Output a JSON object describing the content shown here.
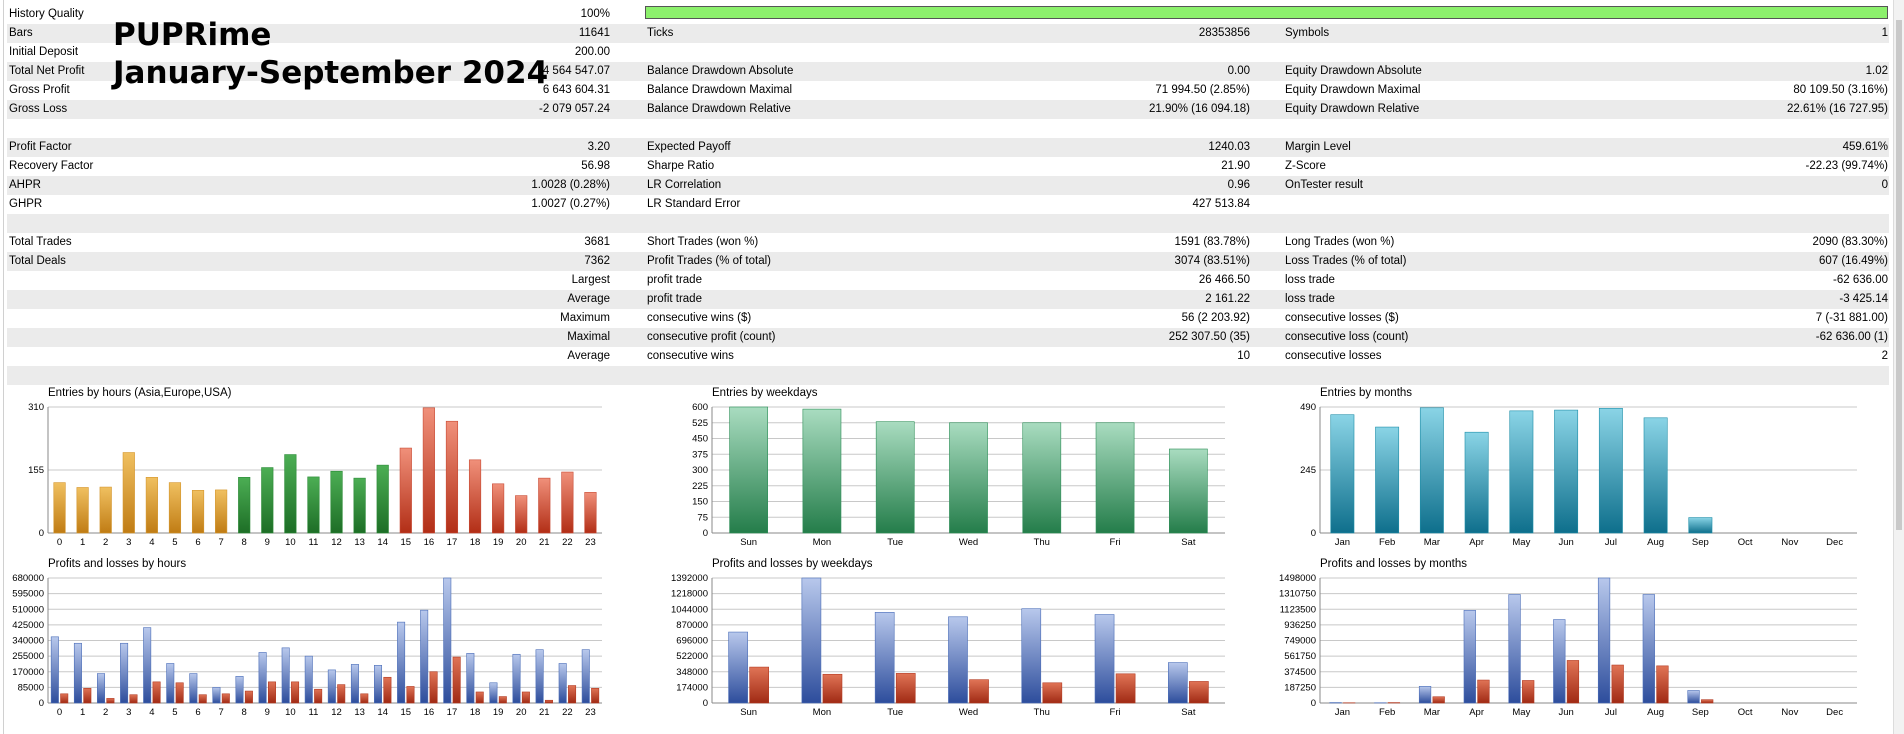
{
  "overlay": {
    "line1": "PUPRime",
    "line2": "January-September 2024"
  },
  "stats": [
    [
      [
        "History Quality",
        "100%"
      ],
      null,
      null
    ],
    [
      [
        "Bars",
        "11641"
      ],
      [
        "Ticks",
        "28353856"
      ],
      [
        "Symbols",
        "1"
      ]
    ],
    [
      [
        "Initial Deposit",
        "200.00"
      ],
      null,
      null
    ],
    [
      [
        "Total Net Profit",
        "4 564 547.07"
      ],
      [
        "Balance Drawdown Absolute",
        "0.00"
      ],
      [
        "Equity Drawdown Absolute",
        "1.02"
      ]
    ],
    [
      [
        "Gross Profit",
        "6 643 604.31"
      ],
      [
        "Balance Drawdown Maximal",
        "71 994.50 (2.85%)"
      ],
      [
        "Equity Drawdown Maximal",
        "80 109.50 (3.16%)"
      ]
    ],
    [
      [
        "Gross Loss",
        "-2 079 057.24"
      ],
      [
        "Balance Drawdown Relative",
        "21.90% (16 094.18)"
      ],
      [
        "Equity Drawdown Relative",
        "22.61% (16 727.95)"
      ]
    ],
    null,
    [
      [
        "Profit Factor",
        "3.20"
      ],
      [
        "Expected Payoff",
        "1240.03"
      ],
      [
        "Margin Level",
        "459.61%"
      ]
    ],
    [
      [
        "Recovery Factor",
        "56.98"
      ],
      [
        "Sharpe Ratio",
        "21.90"
      ],
      [
        "Z-Score",
        "-22.23 (99.74%)"
      ]
    ],
    [
      [
        "AHPR",
        "1.0028 (0.28%)"
      ],
      [
        "LR Correlation",
        "0.96"
      ],
      [
        "OnTester result",
        "0"
      ]
    ],
    [
      [
        "GHPR",
        "1.0027 (0.27%)"
      ],
      [
        "LR Standard Error",
        "427 513.84"
      ],
      null
    ],
    null,
    [
      [
        "Total Trades",
        "3681"
      ],
      [
        "Short Trades (won %)",
        "1591 (83.78%)"
      ],
      [
        "Long Trades (won %)",
        "2090 (83.30%)"
      ]
    ],
    [
      [
        "Total Deals",
        "7362"
      ],
      [
        "Profit Trades (% of total)",
        "3074 (83.51%)"
      ],
      [
        "Loss Trades (% of total)",
        "607 (16.49%)"
      ]
    ],
    [
      [
        "",
        "Largest"
      ],
      [
        "profit trade",
        "26 466.50"
      ],
      [
        "loss trade",
        "-62 636.00"
      ]
    ],
    [
      [
        "",
        "Average"
      ],
      [
        "profit trade",
        "2 161.22"
      ],
      [
        "loss trade",
        "-3 425.14"
      ]
    ],
    [
      [
        "",
        "Maximum"
      ],
      [
        "consecutive wins ($)",
        "56 (2 203.92)"
      ],
      [
        "consecutive losses ($)",
        "7 (-31 881.00)"
      ]
    ],
    [
      [
        "",
        "Maximal"
      ],
      [
        "consecutive profit (count)",
        "252 307.50 (35)"
      ],
      [
        "consecutive loss (count)",
        "-62 636.00 (1)"
      ]
    ],
    [
      [
        "",
        "Average"
      ],
      [
        "consecutive wins",
        "10"
      ],
      [
        "consecutive losses",
        "2"
      ]
    ],
    null
  ],
  "quality_bar": {
    "fraction": 1.0,
    "color": "#8cf06c"
  },
  "colors": {
    "profit": "#4a6db8",
    "loss": "#b33a22",
    "grid": "#c8c8c8"
  },
  "chart_data": [
    {
      "type": "bar",
      "title": "Entries by hours (Asia,Europe,USA)",
      "categories": [
        "0",
        "1",
        "2",
        "3",
        "4",
        "5",
        "6",
        "7",
        "8",
        "9",
        "10",
        "11",
        "12",
        "13",
        "14",
        "15",
        "16",
        "17",
        "18",
        "19",
        "20",
        "21",
        "22",
        "23"
      ],
      "values": [
        124,
        112,
        113,
        198,
        137,
        124,
        105,
        106,
        137,
        161,
        193,
        138,
        152,
        135,
        167,
        209,
        308,
        275,
        180,
        121,
        92,
        135,
        150,
        100
      ],
      "yticks": [
        "0",
        "155",
        "310"
      ],
      "ylim": [
        0,
        310
      ],
      "colors": [
        "#d4962e",
        "#d4962e",
        "#d4962e",
        "#d4962e",
        "#d4962e",
        "#d4962e",
        "#d4962e",
        "#d4962e",
        "#2a8a36",
        "#2a8a36",
        "#2a8a36",
        "#2a8a36",
        "#2a8a36",
        "#2a8a36",
        "#2a8a36",
        "#c84a34",
        "#c84a34",
        "#c84a34",
        "#c84a34",
        "#c84a34",
        "#c84a34",
        "#c84a34",
        "#c84a34",
        "#c84a34"
      ]
    },
    {
      "type": "bar",
      "title": "Entries by weekdays",
      "categories": [
        "Sun",
        "Mon",
        "Tue",
        "Wed",
        "Thu",
        "Fri",
        "Sat"
      ],
      "values": [
        600,
        590,
        530,
        525,
        525,
        525,
        400
      ],
      "yticks": [
        "0",
        "75",
        "150",
        "225",
        "300",
        "375",
        "450",
        "525",
        "600"
      ],
      "ylim": [
        0,
        600
      ],
      "colors": [
        "#2e8f58"
      ]
    },
    {
      "type": "bar",
      "title": "Entries by months",
      "categories": [
        "Jan",
        "Feb",
        "Mar",
        "Apr",
        "May",
        "Jun",
        "Jul",
        "Aug",
        "Sep",
        "Oct",
        "Nov",
        "Dec"
      ],
      "values": [
        460,
        412,
        487,
        392,
        475,
        478,
        485,
        448,
        60,
        0,
        0,
        0
      ],
      "yticks": [
        "0",
        "245",
        "490"
      ],
      "ylim": [
        0,
        490
      ],
      "colors": [
        "#1e8ea8"
      ]
    },
    {
      "type": "bar",
      "title": "Profits and losses by hours",
      "categories": [
        "0",
        "1",
        "2",
        "3",
        "4",
        "5",
        "6",
        "7",
        "8",
        "9",
        "10",
        "11",
        "12",
        "13",
        "14",
        "15",
        "16",
        "17",
        "18",
        "19",
        "20",
        "21",
        "22",
        "23"
      ],
      "series": [
        {
          "values": [
            360000,
            325000,
            160000,
            325000,
            410000,
            215000,
            160000,
            85000,
            145000,
            275000,
            300000,
            255000,
            180000,
            210000,
            205000,
            440000,
            505000,
            680000,
            270000,
            110000,
            265000,
            290000,
            215000,
            290000
          ]
        },
        {
          "values": [
            50000,
            80000,
            25000,
            45000,
            115000,
            110000,
            45000,
            50000,
            65000,
            115000,
            115000,
            75000,
            100000,
            50000,
            140000,
            90000,
            170000,
            250000,
            60000,
            35000,
            60000,
            15000,
            95000,
            80000
          ]
        }
      ],
      "yticks": [
        "0",
        "85000",
        "170000",
        "255000",
        "340000",
        "425000",
        "510000",
        "595000",
        "680000"
      ],
      "ylim": [
        0,
        680000
      ]
    },
    {
      "type": "bar",
      "title": "Profits and losses by weekdays",
      "categories": [
        "Sun",
        "Mon",
        "Tue",
        "Wed",
        "Thu",
        "Fri",
        "Sat"
      ],
      "series": [
        {
          "values": [
            790000,
            1392000,
            1010000,
            960000,
            1050000,
            985000,
            450000
          ]
        },
        {
          "values": [
            400000,
            320000,
            330000,
            260000,
            225000,
            325000,
            240000
          ]
        }
      ],
      "yticks": [
        "0",
        "174000",
        "348000",
        "522000",
        "696000",
        "870000",
        "1044000",
        "1218000",
        "1392000"
      ],
      "ylim": [
        0,
        1392000
      ]
    },
    {
      "type": "bar",
      "title": "Profits and losses by months",
      "categories": [
        "Jan",
        "Feb",
        "Mar",
        "Apr",
        "May",
        "Jun",
        "Jul",
        "Aug",
        "Sep",
        "Oct",
        "Nov",
        "Dec"
      ],
      "series": [
        {
          "values": [
            5000,
            3000,
            200000,
            1110000,
            1300000,
            1000000,
            1498000,
            1300000,
            150000,
            0,
            0,
            0
          ]
        },
        {
          "values": [
            3000,
            5000,
            75000,
            275000,
            270000,
            510000,
            455000,
            445000,
            40000,
            0,
            0,
            0
          ]
        }
      ],
      "yticks": [
        "0",
        "187250",
        "374500",
        "561750",
        "749000",
        "936250",
        "1123500",
        "1310750",
        "1498000"
      ],
      "ylim": [
        0,
        1498000
      ]
    }
  ]
}
